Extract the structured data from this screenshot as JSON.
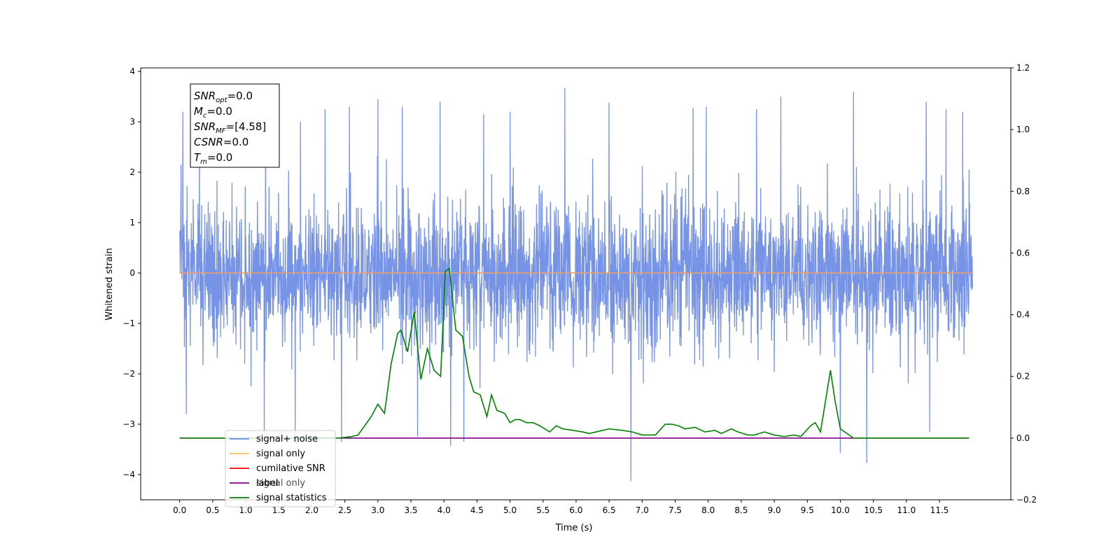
{
  "chart_data": {
    "type": "line",
    "xlabel": "Time (s)",
    "ylabel": "Whitened strain",
    "xlim": [
      -0.59,
      12.58
    ],
    "ylim": [
      -4.5,
      4.07
    ],
    "y2lim": [
      -0.2,
      1.2
    ],
    "x_ticks": [
      0.0,
      0.5,
      1.0,
      1.5,
      2.0,
      2.5,
      3.0,
      3.5,
      4.0,
      4.5,
      5.0,
      5.5,
      6.0,
      6.5,
      7.0,
      7.5,
      8.0,
      8.5,
      9.0,
      9.5,
      10.0,
      10.5,
      11.0,
      11.5
    ],
    "x_tick_labels": [
      "0.0",
      "0.5",
      "1.0",
      "1.5",
      "2.0",
      "2.5",
      "3.0",
      "3.5",
      "4.0",
      "4.5",
      "5.0",
      "5.5",
      "6.0",
      "6.5",
      "7.0",
      "7.5",
      "8.0",
      "8.5",
      "9.0",
      "9.5",
      "10.0",
      "10.5",
      "11.0",
      "11.5"
    ],
    "y_ticks": [
      4,
      3,
      2,
      1,
      0,
      -1,
      -2,
      -3,
      -4
    ],
    "y_tick_labels": [
      "4",
      "3",
      "2",
      "1",
      "0",
      "−1",
      "−2",
      "−3",
      "−4"
    ],
    "y2_ticks": [
      1.2,
      1.0,
      0.8,
      0.6,
      0.4,
      0.2,
      0.0,
      -0.2
    ],
    "y2_tick_labels": [
      "1.2",
      "1.0",
      "0.8",
      "0.6",
      "0.4",
      "0.2",
      "0.0",
      "−0.2"
    ],
    "grid": false,
    "legend_position": "lower-left",
    "noise": {
      "x_range": [
        0.0,
        12.0
      ],
      "sample_count": 3000,
      "amplitude_envelope": [
        -2.2,
        2.2
      ],
      "spikes": [
        {
          "x": 0.02,
          "y": 2.15
        },
        {
          "x": 0.05,
          "y": 3.2
        },
        {
          "x": 0.1,
          "y": -2.8
        },
        {
          "x": 0.3,
          "y": 2.6
        },
        {
          "x": 1.28,
          "y": -3.2
        },
        {
          "x": 1.3,
          "y": 3.1
        },
        {
          "x": 1.75,
          "y": -3.2
        },
        {
          "x": 1.83,
          "y": 3.0
        },
        {
          "x": 2.2,
          "y": 3.25
        },
        {
          "x": 2.45,
          "y": -3.35
        },
        {
          "x": 2.57,
          "y": 3.3
        },
        {
          "x": 3.0,
          "y": 3.45
        },
        {
          "x": 3.37,
          "y": 3.3
        },
        {
          "x": 3.6,
          "y": -3.25
        },
        {
          "x": 3.94,
          "y": 3.4
        },
        {
          "x": 4.1,
          "y": -3.43
        },
        {
          "x": 4.3,
          "y": -3.35
        },
        {
          "x": 4.6,
          "y": 3.15
        },
        {
          "x": 5.0,
          "y": 3.2
        },
        {
          "x": 5.83,
          "y": 3.67
        },
        {
          "x": 6.5,
          "y": 3.38
        },
        {
          "x": 6.83,
          "y": -4.13
        },
        {
          "x": 7.77,
          "y": 3.28
        },
        {
          "x": 7.97,
          "y": 3.3
        },
        {
          "x": 8.73,
          "y": 3.25
        },
        {
          "x": 9.1,
          "y": 3.5
        },
        {
          "x": 10.0,
          "y": -3.57
        },
        {
          "x": 10.2,
          "y": 3.6
        },
        {
          "x": 10.4,
          "y": -3.77
        },
        {
          "x": 11.3,
          "y": 3.4
        },
        {
          "x": 11.6,
          "y": 3.25
        },
        {
          "x": 11.35,
          "y": -3.15
        },
        {
          "x": 11.85,
          "y": 3.2
        }
      ]
    },
    "signal_statistics": {
      "x": [
        0.0,
        2.4,
        2.6,
        2.7,
        2.8,
        2.9,
        3.0,
        3.1,
        3.2,
        3.3,
        3.35,
        3.45,
        3.55,
        3.65,
        3.75,
        3.85,
        3.95,
        4.02,
        4.08,
        4.18,
        4.28,
        4.38,
        4.45,
        4.55,
        4.65,
        4.72,
        4.8,
        4.92,
        5.0,
        5.08,
        5.15,
        5.25,
        5.35,
        5.45,
        5.6,
        5.7,
        5.8,
        5.95,
        6.1,
        6.2,
        6.3,
        6.5,
        6.7,
        6.85,
        7.0,
        7.2,
        7.35,
        7.45,
        7.55,
        7.65,
        7.8,
        7.95,
        8.1,
        8.2,
        8.35,
        8.45,
        8.6,
        8.7,
        8.85,
        9.0,
        9.15,
        9.3,
        9.4,
        9.55,
        9.62,
        9.7,
        9.85,
        9.92,
        10.0,
        10.2,
        11.0,
        11.95
      ],
      "y": [
        0.0,
        0.0,
        0.005,
        0.01,
        0.04,
        0.07,
        0.11,
        0.08,
        0.24,
        0.34,
        0.35,
        0.28,
        0.41,
        0.19,
        0.29,
        0.22,
        0.2,
        0.54,
        0.55,
        0.35,
        0.33,
        0.2,
        0.15,
        0.14,
        0.07,
        0.14,
        0.09,
        0.08,
        0.05,
        0.06,
        0.06,
        0.05,
        0.05,
        0.04,
        0.02,
        0.04,
        0.03,
        0.025,
        0.02,
        0.015,
        0.02,
        0.03,
        0.025,
        0.02,
        0.01,
        0.01,
        0.045,
        0.045,
        0.04,
        0.03,
        0.035,
        0.02,
        0.025,
        0.015,
        0.03,
        0.02,
        0.01,
        0.01,
        0.02,
        0.01,
        0.005,
        0.01,
        0.005,
        0.04,
        0.05,
        0.02,
        0.22,
        0.12,
        0.03,
        0.0,
        0.0,
        0.0
      ]
    },
    "series": [
      {
        "name": "signal+ noise",
        "color": "#6f8de4"
      },
      {
        "name": "signal only",
        "color": "#ffbf5e"
      },
      {
        "name": "cumilative SNR",
        "color": "#ff0000"
      },
      {
        "name": "label",
        "color": "#800080"
      },
      {
        "name": "signal statistics",
        "color": "#008000"
      }
    ],
    "flat_lines": {
      "signal_only_y": 0.0,
      "label_y2": 0.0
    },
    "info_box": {
      "lines": [
        {
          "sym": "SNR",
          "sub": "opt",
          "val": "=0.0"
        },
        {
          "sym": "M",
          "sub": "c",
          "val": "=0.0"
        },
        {
          "sym": "SNR",
          "sub": "MF",
          "val": "=[4.58]"
        },
        {
          "sym": "CSNR",
          "sub": "",
          "val": "=0.0"
        },
        {
          "sym": "T",
          "sub": "m",
          "val": "=0.0"
        }
      ]
    },
    "legend_ghost_text": "signal only"
  }
}
